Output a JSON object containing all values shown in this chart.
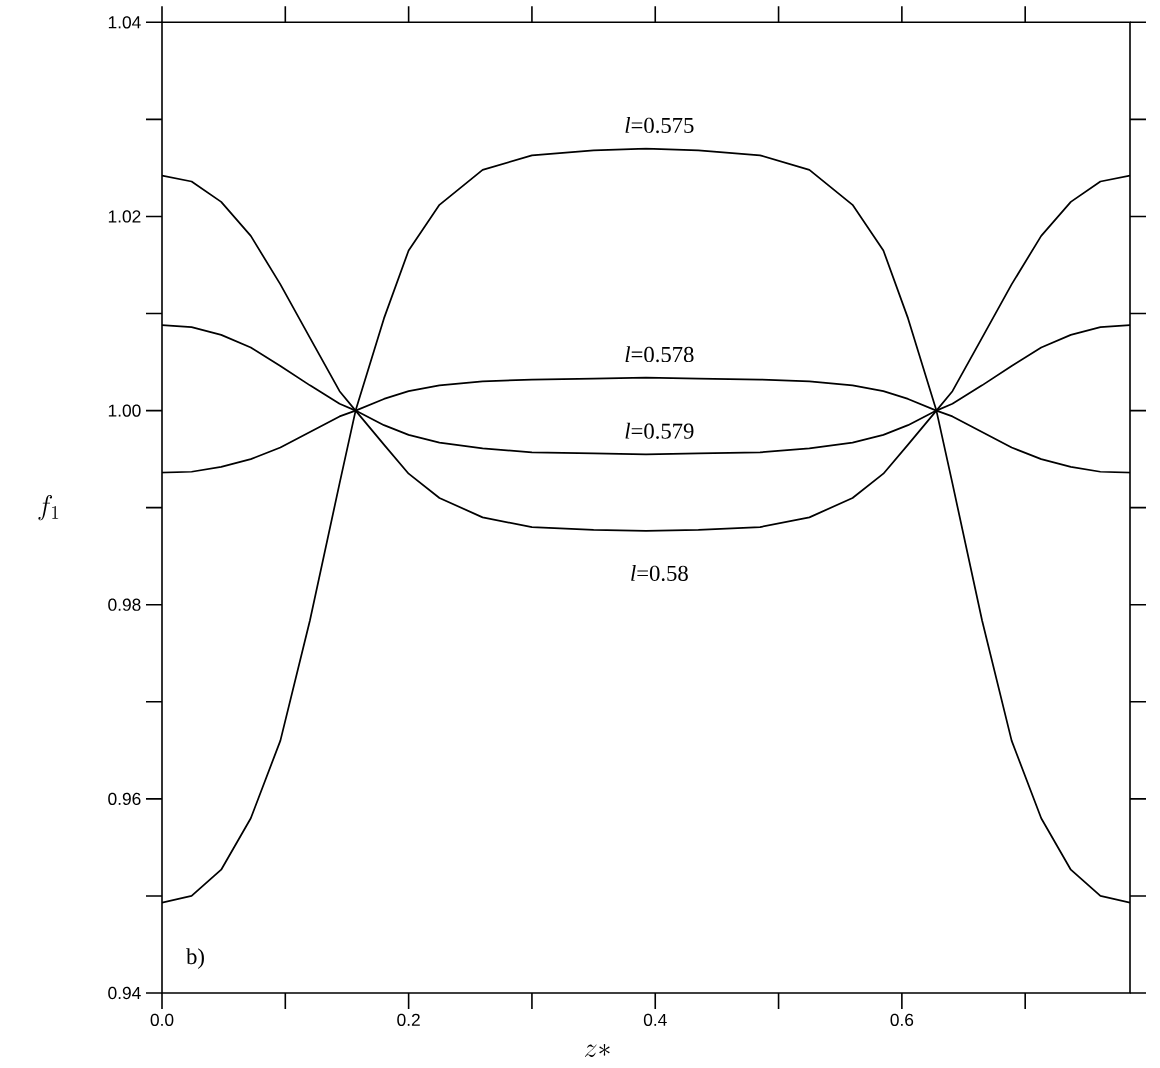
{
  "chart_data": {
    "type": "line",
    "xlabel": "z*",
    "ylabel": "f_1",
    "x": [
      0,
      0.024,
      0.048,
      0.072,
      0.096,
      0.12,
      0.144,
      0.157,
      0.18,
      0.2,
      0.225,
      0.26,
      0.3,
      0.35,
      0.3925,
      0.435,
      0.485,
      0.525,
      0.56,
      0.585,
      0.605,
      0.628,
      0.641,
      0.665,
      0.689,
      0.713,
      0.737,
      0.761,
      0.785
    ],
    "series": [
      {
        "name": "*l*=0.575",
        "color": "#000000",
        "values": [
          0.9493,
          0.95,
          0.9527,
          0.958,
          0.966,
          0.9784,
          0.9925,
          1.0,
          1.0095,
          1.0165,
          1.0212,
          1.0248,
          1.0263,
          1.0268,
          1.027,
          1.0268,
          1.0263,
          1.0248,
          1.0212,
          1.0165,
          1.0095,
          1.0,
          0.9925,
          0.9784,
          0.966,
          0.958,
          0.9527,
          0.95,
          0.9493
        ]
      },
      {
        "name": "*l*=0.578",
        "color": "#000000",
        "values": [
          0.9936,
          0.9937,
          0.9942,
          0.995,
          0.9962,
          0.9978,
          0.9994,
          1.0,
          1.0012,
          1.002,
          1.0026,
          1.003,
          1.0032,
          1.0033,
          1.0034,
          1.0033,
          1.0032,
          1.003,
          1.0026,
          1.002,
          1.0012,
          1.0,
          0.9994,
          0.9978,
          0.9962,
          0.995,
          0.9942,
          0.9937,
          0.9936
        ]
      },
      {
        "name": "*l*=0.579",
        "color": "#000000",
        "values": [
          1.0088,
          1.0086,
          1.0078,
          1.0065,
          1.0046,
          1.0026,
          1.0007,
          1.0,
          0.9985,
          0.9975,
          0.9967,
          0.9961,
          0.9957,
          0.9956,
          0.9955,
          0.9956,
          0.9957,
          0.9961,
          0.9967,
          0.9975,
          0.9985,
          1.0,
          1.0007,
          1.0026,
          1.0046,
          1.0065,
          1.0078,
          1.0086,
          1.0088
        ]
      },
      {
        "name": "*l*=0.58",
        "color": "#000000",
        "values": [
          1.0242,
          1.0236,
          1.0215,
          1.018,
          1.013,
          1.0075,
          1.002,
          1.0,
          0.9965,
          0.9935,
          0.991,
          0.989,
          0.988,
          0.9877,
          0.9876,
          0.9877,
          0.988,
          0.989,
          0.991,
          0.9935,
          0.9965,
          1.0,
          1.002,
          1.0075,
          1.013,
          1.018,
          1.0215,
          1.0236,
          1.0242
        ]
      }
    ],
    "xlim": [
      0,
      0.785
    ],
    "ylim": [
      0.94,
      1.04
    ],
    "xticks": [
      {
        "value": 0,
        "label": "0.0"
      },
      {
        "value": 0.1,
        "label": null
      },
      0.2,
      {
        "value": 0.3,
        "label": null
      },
      0.4,
      {
        "value": 0.5,
        "label": null
      },
      0.6,
      {
        "value": 0.7,
        "label": null
      }
    ],
    "yticks": [
      {
        "value": 0.94,
        "label": "0.94"
      },
      {
        "value": 0.95,
        "label": null
      },
      {
        "value": 0.96,
        "label": "0.96"
      },
      {
        "value": 0.97,
        "label": null
      },
      {
        "value": 0.98,
        "label": "0.98"
      },
      {
        "value": 0.99,
        "label": null
      },
      {
        "value": 1.0,
        "label": "1.00"
      },
      {
        "value": 1.01,
        "label": null
      },
      {
        "value": 1.02,
        "label": "1.02"
      },
      {
        "value": 1.03,
        "label": null
      },
      {
        "value": 1.04,
        "label": "1.04"
      }
    ],
    "annotations": [
      "b)"
    ],
    "grid": false,
    "marker": "none",
    "line_style": "solid"
  }
}
